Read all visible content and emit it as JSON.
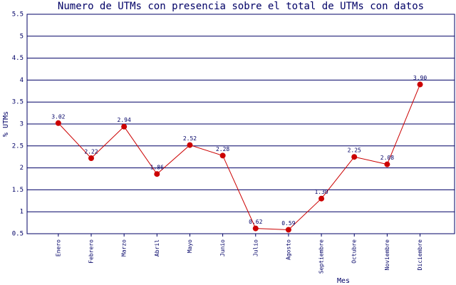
{
  "chart_data": {
    "type": "line",
    "title": "Numero de UTMs con presencia sobre el total de UTMs con datos",
    "x_label": "Mes",
    "y_label": "% UTMs",
    "categories": [
      "Enero",
      "Febrero",
      "Marzo",
      "Abril",
      "Mayo",
      "Junio",
      "Julio",
      "Agosto",
      "Septiembre",
      "Octubre",
      "Noviembre",
      "Diciembre"
    ],
    "values": [
      3.02,
      2.22,
      2.94,
      1.86,
      2.52,
      2.28,
      0.62,
      0.59,
      1.3,
      2.25,
      2.08,
      3.9
    ],
    "value_labels": [
      "3.02",
      "2.22",
      "2.94",
      "1.86",
      "2.52",
      "2.28",
      "0.62",
      "0.59",
      "1.30",
      "2.25",
      "2.08",
      "3.90"
    ],
    "color": "#cc0000",
    "ylim": [
      0.5,
      5.5
    ],
    "yticks": [
      0.5,
      1,
      1.5,
      2,
      2.5,
      3,
      3.5,
      4,
      4.5,
      5,
      5.5
    ],
    "grid": true
  }
}
